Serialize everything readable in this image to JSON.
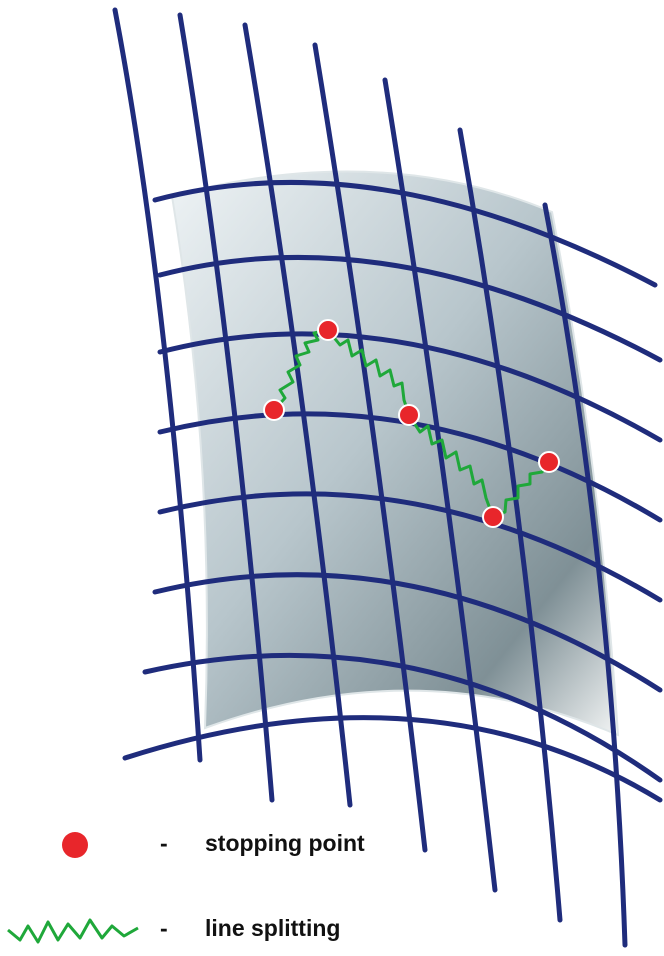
{
  "legend": {
    "items": [
      {
        "dash": "-",
        "label": "stopping point"
      },
      {
        "dash": "-",
        "label": "line splitting"
      }
    ]
  }
}
